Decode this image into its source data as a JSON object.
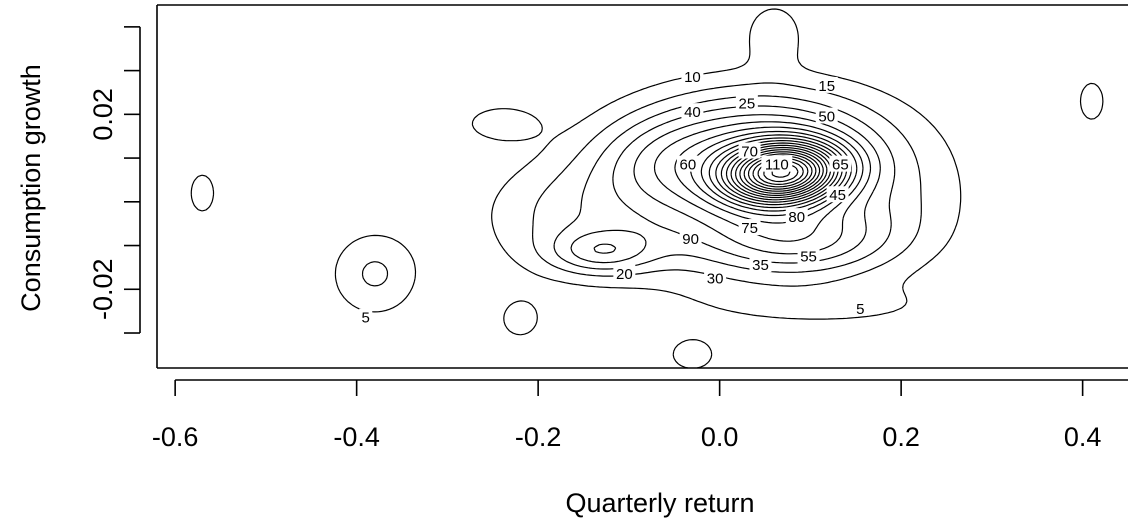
{
  "chart_data": {
    "type": "contour",
    "title": "",
    "xlabel": "Quarterly return",
    "ylabel": "Consumption growth",
    "xlim": [
      -0.62,
      0.45
    ],
    "ylim": [
      -0.038,
      0.045
    ],
    "x_ticks": [
      {
        "value": -0.6,
        "label": "-0.6"
      },
      {
        "value": -0.4,
        "label": "-0.4"
      },
      {
        "value": -0.2,
        "label": "-0.2"
      },
      {
        "value": 0.0,
        "label": "0.0"
      },
      {
        "value": 0.2,
        "label": "0.2"
      },
      {
        "value": 0.4,
        "label": "0.4"
      }
    ],
    "y_ticks": [
      {
        "value": -0.02,
        "label": "-0.02"
      },
      {
        "value": 0.02,
        "label": "0.02"
      }
    ],
    "y_minor_ticks": [
      -0.03,
      -0.01,
      0.0,
      0.01,
      0.03,
      0.04
    ],
    "contour_levels": [
      5,
      10,
      15,
      20,
      25,
      30,
      35,
      40,
      45,
      50,
      55,
      60,
      65,
      70,
      75,
      80,
      85,
      90,
      95,
      100,
      105,
      110
    ],
    "peak": {
      "x": 0.07,
      "y": 0.0065,
      "value": 112
    },
    "secondary_modes": [
      {
        "x": -0.38,
        "y": -0.0165,
        "value": 7
      },
      {
        "x": -0.13,
        "y": -0.0115,
        "value": 23
      },
      {
        "x": 0.06,
        "y": 0.0385,
        "value": 6
      }
    ],
    "contour_labels": [
      {
        "text": "5",
        "x": -0.39,
        "y": -0.0265
      },
      {
        "text": "5",
        "x": 0.155,
        "y": -0.0245
      },
      {
        "text": "10",
        "x": -0.03,
        "y": 0.0285
      },
      {
        "text": "15",
        "x": 0.118,
        "y": 0.0265
      },
      {
        "text": "20",
        "x": -0.105,
        "y": -0.0165
      },
      {
        "text": "25",
        "x": 0.03,
        "y": 0.0225
      },
      {
        "text": "30",
        "x": -0.005,
        "y": -0.0175
      },
      {
        "text": "35",
        "x": 0.045,
        "y": -0.0145
      },
      {
        "text": "40",
        "x": -0.03,
        "y": 0.0205
      },
      {
        "text": "45",
        "x": 0.13,
        "y": 0.0015
      },
      {
        "text": "50",
        "x": 0.118,
        "y": 0.0195
      },
      {
        "text": "55",
        "x": 0.098,
        "y": -0.0125
      },
      {
        "text": "60",
        "x": -0.035,
        "y": 0.0085
      },
      {
        "text": "65",
        "x": 0.133,
        "y": 0.0085
      },
      {
        "text": "70",
        "x": 0.033,
        "y": 0.0115
      },
      {
        "text": "75",
        "x": 0.033,
        "y": -0.006
      },
      {
        "text": "80",
        "x": 0.085,
        "y": -0.0035
      },
      {
        "text": "90",
        "x": -0.032,
        "y": -0.0085
      },
      {
        "text": "110",
        "x": 0.063,
        "y": 0.0085
      }
    ]
  }
}
